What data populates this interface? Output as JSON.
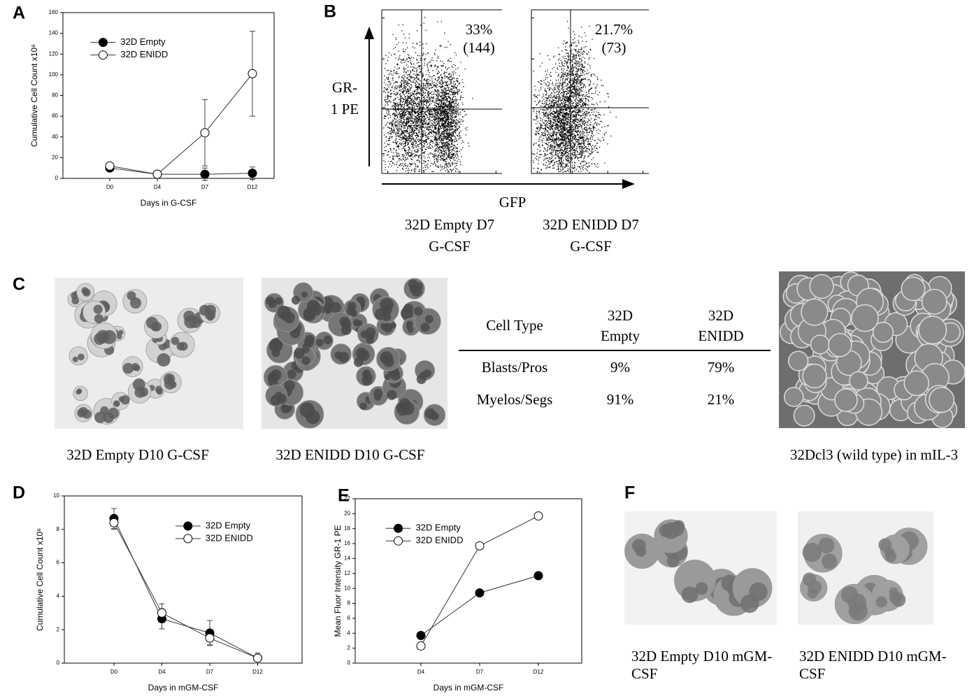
{
  "panel_labels": [
    "A",
    "B",
    "C",
    "D",
    "E",
    "F"
  ],
  "chart_data": [
    {
      "type": "line",
      "xlabel": "Days in G-CSF",
      "ylabel": "Cumulative Cell Count x10⁶",
      "categories": [
        "D0",
        "D4",
        "D7",
        "D12"
      ],
      "ylim": [
        0,
        160
      ],
      "yticks": [
        0,
        20,
        40,
        60,
        80,
        100,
        120,
        140,
        160
      ],
      "legend": "upper left",
      "series": [
        {
          "name": "32D Empty",
          "color": "#000000",
          "filled": true,
          "values": [
            10,
            4,
            4,
            5
          ],
          "errors": [
            1,
            0.5,
            6,
            6
          ]
        },
        {
          "name": "32D ENIDD",
          "color": "#000000",
          "filled": false,
          "values": [
            12,
            4,
            44,
            101
          ],
          "errors": [
            1,
            0.5,
            32,
            41
          ]
        }
      ]
    },
    {
      "type": "line",
      "xlabel": "Days in mGM-CSF",
      "ylabel": "Cumulative Cell Count x10⁶",
      "categories": [
        "D0",
        "D4",
        "D7",
        "D12"
      ],
      "ylim": [
        0,
        10
      ],
      "yticks": [
        0,
        2,
        4,
        6,
        8,
        10
      ],
      "legend": "upper right",
      "series": [
        {
          "name": "32D Empty",
          "color": "#000000",
          "filled": true,
          "values": [
            8.65,
            2.65,
            1.8,
            0.3
          ],
          "errors": [
            0.6,
            0.6,
            0.75,
            0.3
          ]
        },
        {
          "name": "32D ENIDD",
          "color": "#000000",
          "filled": false,
          "values": [
            8.4,
            3.0,
            1.5,
            0.3
          ],
          "errors": [
            0.4,
            0.55,
            0.4,
            0.2
          ]
        }
      ]
    },
    {
      "type": "line",
      "xlabel": "Days in mGM-CSF",
      "ylabel": "Mean Fluor Intensity GR-1 PE",
      "categories": [
        "D4",
        "D7",
        "D12"
      ],
      "ylim": [
        0,
        22
      ],
      "yticks": [
        0,
        2,
        4,
        6,
        8,
        10,
        12,
        14,
        16,
        18,
        20,
        22
      ],
      "legend": "upper left",
      "series": [
        {
          "name": "32D Empty",
          "color": "#000000",
          "filled": true,
          "values": [
            3.7,
            9.4,
            11.7
          ]
        },
        {
          "name": "32D ENIDD",
          "color": "#000000",
          "filled": false,
          "values": [
            2.3,
            15.7,
            19.7
          ]
        }
      ]
    }
  ],
  "flow": {
    "y_label": [
      "GR-",
      "1 PE"
    ],
    "x_label": "GFP",
    "plots": [
      {
        "percent": "33%",
        "count": "(144)",
        "caption": [
          "32D Empty D7",
          "G-CSF"
        ]
      },
      {
        "percent": "21.7%",
        "count": "(73)",
        "caption": [
          "32D ENIDD D7",
          "G-CSF"
        ]
      }
    ]
  },
  "c_images": [
    "32D Empty D10 G-CSF",
    "32D ENIDD  D10 G-CSF",
    "32Dcl3 (wild type) in mIL-3"
  ],
  "table": {
    "header": [
      [
        "Cell Type"
      ],
      [
        "32D",
        "Empty"
      ],
      [
        "32D",
        "ENIDD"
      ]
    ],
    "rows": [
      [
        "Blasts/Pros",
        "9%",
        "79%"
      ],
      [
        "Myelos/Segs",
        "91%",
        "21%"
      ]
    ]
  },
  "f_images": [
    [
      "32D Empty D10 mGM-",
      "CSF"
    ],
    [
      "32D ENIDD  D10 mGM-",
      "CSF"
    ]
  ]
}
